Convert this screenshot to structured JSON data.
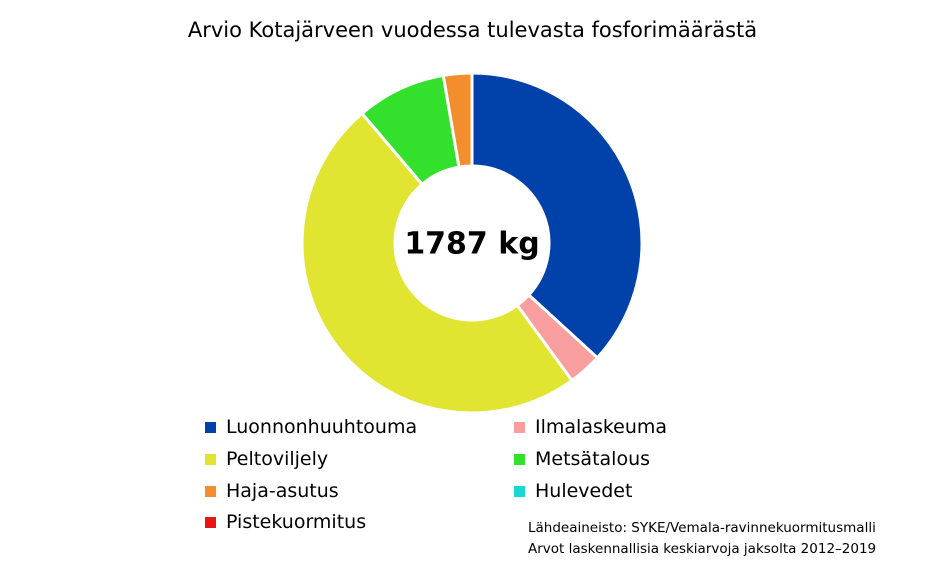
{
  "chart_data": {
    "type": "pie",
    "donut": true,
    "title": "Arvio Kotajärveen vuodessa tulevasta fosforimäärästä",
    "center_label": "1787 kg",
    "series": [
      {
        "name": "Luonnonhuuhtouma",
        "value": 36.8,
        "color": "#0041AA"
      },
      {
        "name": "Ilmalaskeuma",
        "value": 3.2,
        "color": "#F89E9E"
      },
      {
        "name": "Peltoviljely",
        "value": 48.8,
        "color": "#E1E532"
      },
      {
        "name": "Metsätalous",
        "value": 8.5,
        "color": "#33E02B"
      },
      {
        "name": "Haja-asutus",
        "value": 2.7,
        "color": "#F28E2B"
      },
      {
        "name": "Hulevedet",
        "value": 0.0,
        "color": "#17D8D2"
      },
      {
        "name": "Pistekuormitus",
        "value": 0.0,
        "color": "#E81515"
      }
    ],
    "legend_position": "bottom"
  },
  "source": {
    "line1": "Lähdeaineisto: SYKE/Vemala-ravinnekuormitusmalli",
    "line2": "Arvot laskennallisia keskiarvoja jaksolta 2012–2019"
  }
}
